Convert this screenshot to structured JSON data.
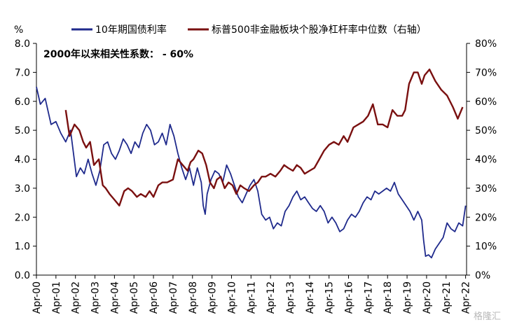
{
  "chart_data": {
    "type": "line",
    "y_unit_label": "%",
    "annotation": "2000年以来相关性系数：  - 60%",
    "watermark": "格隆汇",
    "left_axis": {
      "ylim": [
        0,
        8
      ],
      "ticks": [
        "0.0",
        "1.0",
        "2.0",
        "3.0",
        "4.0",
        "5.0",
        "6.0",
        "7.0",
        "8.0"
      ]
    },
    "right_axis": {
      "ylim": [
        0,
        80
      ],
      "ticks": [
        "0%",
        "10%",
        "20%",
        "30%",
        "40%",
        "50%",
        "60%",
        "70%",
        "80%"
      ]
    },
    "x_axis": {
      "xlim": [
        2000.25,
        2022.3
      ],
      "ticks": [
        "Apr-00",
        "Apr-01",
        "Apr-02",
        "Apr-03",
        "Apr-04",
        "Apr-05",
        "Apr-06",
        "Apr-07",
        "Apr-08",
        "Apr-09",
        "Apr-10",
        "Apr-11",
        "Apr-12",
        "Apr-13",
        "Apr-14",
        "Apr-15",
        "Apr-16",
        "Apr-17",
        "Apr-18",
        "Apr-19",
        "Apr-20",
        "Apr-21",
        "Apr-22"
      ]
    },
    "grid": false,
    "legend_position": "top",
    "series": [
      {
        "name": "10年期国债利率",
        "axis": "left",
        "color": "#1f2a8c",
        "x": [
          2000.25,
          2000.45,
          2000.7,
          2001.0,
          2001.25,
          2001.5,
          2001.75,
          2002.0,
          2002.3,
          2002.5,
          2002.7,
          2002.9,
          2003.1,
          2003.3,
          2003.5,
          2003.7,
          2003.9,
          2004.1,
          2004.3,
          2004.5,
          2004.7,
          2004.9,
          2005.1,
          2005.3,
          2005.5,
          2005.7,
          2005.9,
          2006.1,
          2006.3,
          2006.5,
          2006.7,
          2006.9,
          2007.1,
          2007.3,
          2007.5,
          2007.7,
          2007.9,
          2008.1,
          2008.3,
          2008.5,
          2008.7,
          2008.8,
          2008.9,
          2009.0,
          2009.2,
          2009.4,
          2009.6,
          2009.8,
          2010.0,
          2010.2,
          2010.4,
          2010.6,
          2010.8,
          2011.0,
          2011.2,
          2011.4,
          2011.6,
          2011.8,
          2012.0,
          2012.2,
          2012.4,
          2012.6,
          2012.8,
          2013.0,
          2013.2,
          2013.4,
          2013.6,
          2013.8,
          2014.0,
          2014.2,
          2014.4,
          2014.6,
          2014.8,
          2015.0,
          2015.2,
          2015.4,
          2015.6,
          2015.8,
          2016.0,
          2016.2,
          2016.4,
          2016.6,
          2016.8,
          2017.0,
          2017.2,
          2017.4,
          2017.6,
          2017.8,
          2018.0,
          2018.2,
          2018.4,
          2018.6,
          2018.8,
          2019.0,
          2019.2,
          2019.4,
          2019.6,
          2019.8,
          2020.0,
          2020.1,
          2020.2,
          2020.35,
          2020.5,
          2020.7,
          2020.9,
          2021.1,
          2021.3,
          2021.5,
          2021.7,
          2021.9,
          2022.1,
          2022.25
        ],
        "values": [
          6.5,
          5.9,
          6.1,
          5.2,
          5.3,
          4.9,
          4.6,
          5.0,
          3.4,
          3.7,
          3.5,
          4.0,
          3.5,
          3.1,
          3.6,
          4.5,
          4.6,
          4.2,
          4.0,
          4.3,
          4.7,
          4.5,
          4.2,
          4.6,
          4.4,
          4.9,
          5.2,
          5.0,
          4.5,
          4.6,
          4.9,
          4.5,
          5.2,
          4.8,
          4.2,
          3.7,
          3.3,
          3.7,
          3.1,
          3.7,
          3.2,
          2.4,
          2.1,
          2.8,
          3.3,
          3.6,
          3.5,
          3.2,
          3.8,
          3.5,
          3.1,
          2.7,
          2.5,
          2.8,
          3.1,
          3.3,
          2.9,
          2.1,
          1.9,
          2.0,
          1.6,
          1.8,
          1.7,
          2.2,
          2.4,
          2.7,
          2.9,
          2.6,
          2.7,
          2.5,
          2.3,
          2.2,
          2.4,
          2.2,
          1.8,
          2.0,
          1.8,
          1.5,
          1.6,
          1.9,
          2.1,
          2.0,
          2.2,
          2.5,
          2.7,
          2.6,
          2.9,
          2.8,
          2.9,
          3.0,
          2.9,
          3.2,
          2.8,
          2.6,
          2.4,
          2.2,
          1.9,
          2.2,
          1.9,
          1.2,
          0.65,
          0.7,
          0.6,
          0.9,
          1.1,
          1.3,
          1.8,
          1.6,
          1.5,
          1.8,
          1.7,
          2.4
        ]
      },
      {
        "name": "标普500非金融板块个股净杠杆率中位数（右轴）",
        "axis": "right",
        "color": "#7a1010",
        "x": [
          2001.75,
          2001.95,
          2002.2,
          2002.45,
          2002.65,
          2002.8,
          2003.0,
          2003.2,
          2003.45,
          2003.65,
          2003.8,
          2004.0,
          2004.25,
          2004.5,
          2004.75,
          2004.95,
          2005.15,
          2005.4,
          2005.6,
          2005.85,
          2006.05,
          2006.25,
          2006.5,
          2006.7,
          2006.95,
          2007.25,
          2007.5,
          2007.75,
          2008.0,
          2008.15,
          2008.3,
          2008.55,
          2008.75,
          2008.95,
          2009.15,
          2009.35,
          2009.5,
          2009.7,
          2009.9,
          2010.1,
          2010.3,
          2010.5,
          2010.7,
          2010.9,
          2011.15,
          2011.4,
          2011.6,
          2011.8,
          2012.0,
          2012.25,
          2012.5,
          2012.75,
          2012.95,
          2013.15,
          2013.4,
          2013.6,
          2013.8,
          2014.0,
          2014.25,
          2014.5,
          2014.75,
          2015.0,
          2015.25,
          2015.5,
          2015.75,
          2016.0,
          2016.2,
          2016.5,
          2016.75,
          2017.0,
          2017.25,
          2017.5,
          2017.75,
          2018.0,
          2018.25,
          2018.5,
          2018.75,
          2019.0,
          2019.15,
          2019.35,
          2019.6,
          2019.8,
          2020.0,
          2020.15,
          2020.4,
          2020.7,
          2021.0,
          2021.3,
          2021.6,
          2021.85,
          2022.1
        ],
        "values": [
          57,
          48,
          52,
          50,
          46,
          44,
          46,
          38,
          40,
          31,
          30,
          28,
          26,
          24,
          29,
          30,
          29,
          27,
          28,
          27,
          29,
          27,
          31,
          32,
          32,
          33,
          40,
          38,
          36,
          39,
          40,
          43,
          42,
          38,
          32,
          30,
          33,
          34,
          30,
          32,
          31,
          28,
          31,
          30,
          29,
          31,
          32,
          34,
          34,
          35,
          34,
          36,
          38,
          37,
          36,
          38,
          37,
          35,
          36,
          37,
          40,
          43,
          45,
          46,
          45,
          48,
          46,
          51,
          52,
          53,
          55,
          59,
          52,
          52,
          51,
          57,
          55,
          55,
          57,
          66,
          70,
          70,
          66,
          69,
          71,
          67,
          64,
          62,
          58,
          54,
          58
        ]
      }
    ]
  }
}
